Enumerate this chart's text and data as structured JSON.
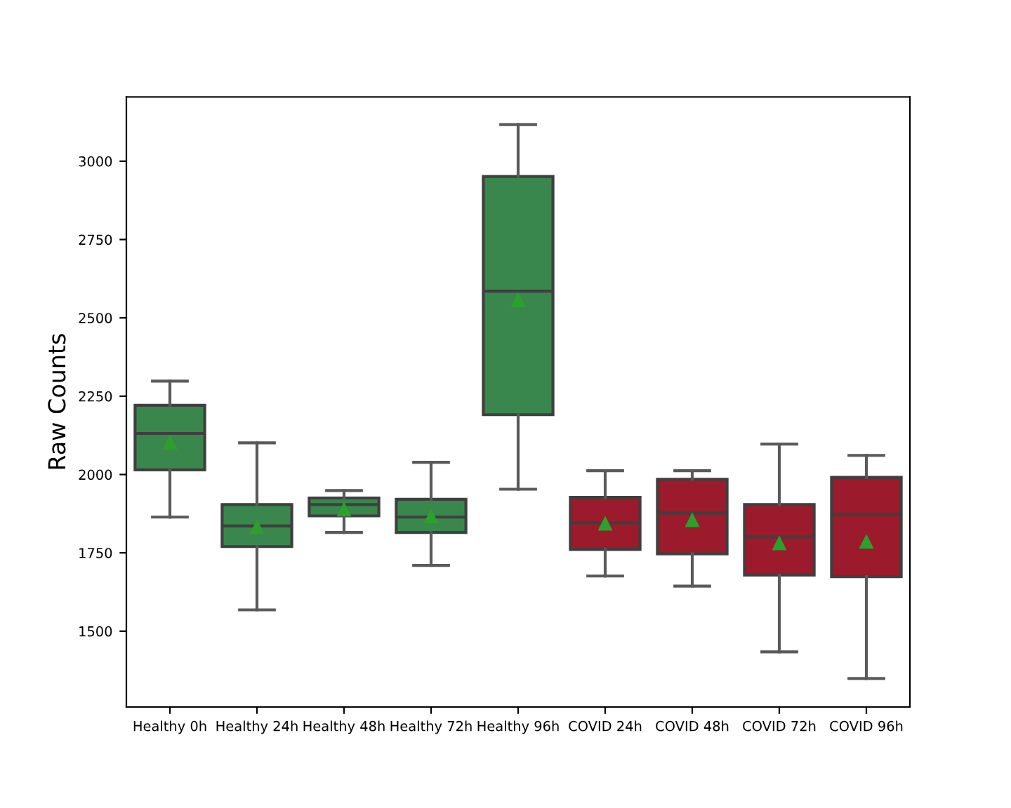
{
  "chart_data": {
    "type": "box",
    "ylabel": "Raw Counts",
    "categories": [
      "Healthy 0h",
      "Healthy 24h",
      "Healthy 48h",
      "Healthy 72h",
      "Healthy 96h",
      "COVID 24h",
      "COVID 48h",
      "COVID 72h",
      "COVID 96h"
    ],
    "boxes": [
      {
        "low": 1864,
        "q1": 2015,
        "median": 2131,
        "q3": 2221,
        "high": 2298,
        "mean": 2101
      },
      {
        "low": 1568,
        "q1": 1770,
        "median": 1836,
        "q3": 1904,
        "high": 2101,
        "mean": 1832
      },
      {
        "low": 1815,
        "q1": 1868,
        "median": 1904,
        "q3": 1925,
        "high": 1949,
        "mean": 1888
      },
      {
        "low": 1710,
        "q1": 1815,
        "median": 1864,
        "q3": 1921,
        "high": 2039,
        "mean": 1866
      },
      {
        "low": 1953,
        "q1": 2191,
        "median": 2585,
        "q3": 2951,
        "high": 3117,
        "mean": 2556
      },
      {
        "low": 1676,
        "q1": 1761,
        "median": 1846,
        "q3": 1927,
        "high": 2012,
        "mean": 1843
      },
      {
        "low": 1644,
        "q1": 1747,
        "median": 1877,
        "q3": 1985,
        "high": 2012,
        "mean": 1854
      },
      {
        "low": 1434,
        "q1": 1679,
        "median": 1801,
        "q3": 1904,
        "high": 2097,
        "mean": 1780
      },
      {
        "low": 1349,
        "q1": 1674,
        "median": 1873,
        "q3": 1991,
        "high": 2061,
        "mean": 1785
      }
    ],
    "colors": [
      "#3a874d",
      "#3a874d",
      "#3a874d",
      "#3a874d",
      "#3a874d",
      "#9b1a2b",
      "#9b1a2b",
      "#9b1a2b",
      "#9b1a2b"
    ],
    "ylim": [
      1258,
      3205
    ],
    "yticks": [
      1500,
      1750,
      2000,
      2250,
      2500,
      2750,
      3000
    ],
    "grid": false,
    "marker": "triangle"
  }
}
